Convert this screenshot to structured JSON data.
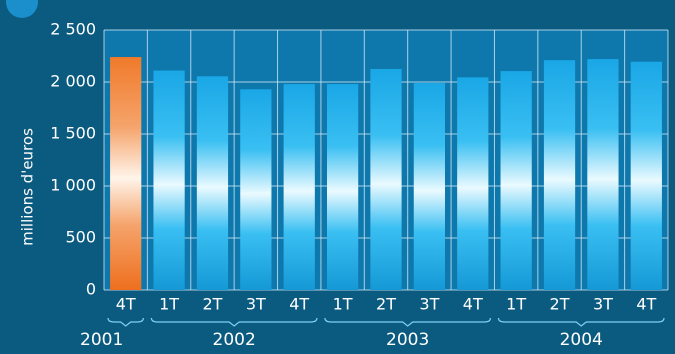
{
  "chart_data": {
    "type": "bar",
    "ylabel": "millions d'euros",
    "ylim": [
      0,
      2500
    ],
    "yticks": [
      0,
      500,
      1000,
      1500,
      2000,
      2500
    ],
    "ytick_labels": [
      "0",
      "500",
      "1 000",
      "1 500",
      "2 000",
      "2 500"
    ],
    "categories": [
      "4T",
      "1T",
      "2T",
      "3T",
      "4T",
      "1T",
      "2T",
      "3T",
      "4T",
      "1T",
      "2T",
      "3T",
      "4T"
    ],
    "values": [
      2240,
      2110,
      2055,
      1930,
      1980,
      1980,
      2125,
      1990,
      2045,
      2105,
      2210,
      2220,
      2195
    ],
    "year_groups": [
      {
        "label": "2001",
        "count": 1
      },
      {
        "label": "2002",
        "count": 4
      },
      {
        "label": "2003",
        "count": 4
      },
      {
        "label": "2004",
        "count": 4
      }
    ],
    "grid": true,
    "colors": {
      "background": "#0b5a80",
      "plot_background": "#0e78ad",
      "highlight_bar": "#f07a2a",
      "bar": "#17a9e8",
      "grid": "#cfe8f5"
    }
  }
}
